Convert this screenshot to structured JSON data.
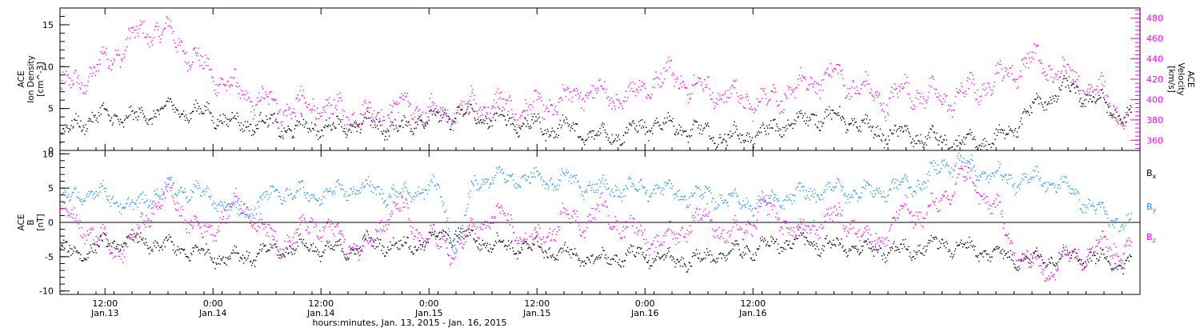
{
  "colors": {
    "density": "#000000",
    "velocity": "#ff00ff",
    "bx": "#000000",
    "by": "#1e90ff",
    "bz": "#ff00ff"
  },
  "chart_data": [
    {
      "type": "scatter",
      "panel": "top",
      "left_axis": {
        "lines": [
          "ACE",
          "Ion Density",
          "[cm^-3]"
        ],
        "ylim": [
          0,
          17
        ],
        "ticks": [
          "0",
          "5",
          "10",
          "15"
        ],
        "tick_values": [
          0,
          5,
          10,
          15
        ]
      },
      "right_axis": {
        "lines": [
          "ACE",
          "Velocity",
          "[km/s]"
        ],
        "ylim": [
          350,
          490
        ],
        "ticks": [
          "360",
          "380",
          "400",
          "420",
          "440",
          "460",
          "480"
        ],
        "tick_values": [
          360,
          380,
          400,
          420,
          440,
          460,
          480
        ]
      },
      "series": [
        {
          "axis": "left",
          "color_key": "density",
          "x_hours": [
            0,
            2,
            4,
            6,
            8,
            10,
            12,
            14,
            16,
            18,
            20,
            22,
            24,
            26,
            28,
            30,
            32,
            34,
            36,
            38,
            40,
            42,
            44,
            46,
            48,
            50,
            52,
            54,
            56,
            58,
            60,
            62,
            64,
            66,
            68,
            70,
            72,
            74,
            76,
            78,
            80,
            82,
            84,
            86,
            88,
            90,
            92,
            94,
            96,
            98,
            100,
            102,
            104,
            106,
            108,
            110,
            112,
            114,
            116,
            118
          ],
          "y": [
            1.5,
            3.5,
            4.0,
            4.2,
            3.8,
            4.5,
            5.0,
            4.8,
            4.5,
            4.0,
            3.0,
            3.5,
            3.0,
            2.5,
            3.0,
            2.8,
            3.0,
            3.2,
            3.0,
            2.5,
            4.0,
            3.8,
            4.5,
            4.0,
            3.8,
            3.5,
            3.2,
            2.5,
            3.0,
            2.0,
            1.8,
            2.0,
            2.5,
            3.2,
            3.0,
            2.5,
            2.0,
            1.5,
            1.8,
            2.0,
            3.0,
            3.5,
            4.2,
            4.0,
            3.5,
            2.5,
            2.0,
            2.0,
            1.5,
            1.2,
            0.8,
            1.0,
            1.2,
            3.0,
            5.0,
            6.5,
            7.5,
            6.5,
            5.5,
            4.0
          ],
          "spread": 1.2
        },
        {
          "axis": "right",
          "color_key": "velocity",
          "x_hours": [
            0,
            2,
            4,
            6,
            8,
            10,
            12,
            14,
            16,
            18,
            20,
            22,
            24,
            26,
            28,
            30,
            32,
            34,
            36,
            38,
            40,
            42,
            44,
            46,
            48,
            50,
            52,
            54,
            56,
            58,
            60,
            62,
            64,
            66,
            68,
            70,
            72,
            74,
            76,
            78,
            80,
            82,
            84,
            86,
            88,
            90,
            92,
            94,
            96,
            98,
            100,
            102,
            104,
            106,
            108,
            110,
            112,
            114,
            116,
            118
          ],
          "y": [
            410,
            418,
            430,
            445,
            460,
            470,
            465,
            450,
            430,
            420,
            405,
            400,
            395,
            392,
            395,
            390,
            388,
            385,
            388,
            395,
            390,
            385,
            390,
            395,
            395,
            392,
            390,
            395,
            398,
            410,
            405,
            400,
            408,
            420,
            425,
            415,
            410,
            405,
            400,
            398,
            405,
            410,
            420,
            425,
            415,
            405,
            400,
            410,
            405,
            400,
            405,
            412,
            420,
            430,
            440,
            430,
            425,
            415,
            405,
            380
          ],
          "spread": 14
        }
      ]
    },
    {
      "type": "scatter",
      "panel": "bottom",
      "left_axis": {
        "lines": [
          "ACE",
          "B",
          "[nT]"
        ],
        "ylim": [
          -10.5,
          10.5
        ],
        "ticks": [
          "-10",
          "-5",
          "0",
          "5",
          "10"
        ],
        "tick_values": [
          -10,
          -5,
          0,
          5,
          10
        ]
      },
      "legend": {
        "placement": "right",
        "entries": [
          {
            "name": "Bx",
            "sub": "x",
            "color_key": "bx"
          },
          {
            "name": "By",
            "sub": "y",
            "color_key": "by"
          },
          {
            "name": "Bz",
            "sub": "z",
            "color_key": "bz"
          }
        ]
      },
      "series": [
        {
          "name": "Bx",
          "color_key": "bx",
          "x_hours": [
            0,
            2,
            4,
            6,
            8,
            10,
            12,
            14,
            16,
            18,
            20,
            22,
            24,
            26,
            28,
            30,
            32,
            34,
            36,
            38,
            40,
            42,
            44,
            46,
            48,
            50,
            52,
            54,
            56,
            58,
            60,
            62,
            64,
            66,
            68,
            70,
            72,
            74,
            76,
            78,
            80,
            82,
            84,
            86,
            88,
            90,
            92,
            94,
            96,
            98,
            100,
            102,
            104,
            106,
            108,
            110,
            112,
            114,
            116,
            118
          ],
          "y": [
            -4,
            -4.5,
            -3.5,
            -3,
            -2.5,
            -3,
            -3.5,
            -4,
            -4.5,
            -5,
            -5,
            -4.5,
            -4,
            -3.5,
            -3.5,
            -4,
            -4,
            -3,
            -3,
            -3.5,
            -3,
            -2,
            -1.5,
            -2.5,
            -3,
            -3.5,
            -3.5,
            -4,
            -4.5,
            -5,
            -5.5,
            -5,
            -4.5,
            -5,
            -5.5,
            -5.5,
            -5,
            -4.5,
            -4,
            -3.5,
            -3,
            -2.5,
            -3,
            -3.5,
            -3.5,
            -4,
            -4,
            -4,
            -3.5,
            -3,
            -3.5,
            -4,
            -4.5,
            -5,
            -5.5,
            -5,
            -5,
            -5,
            -5.5,
            -6
          ],
          "spread": 1.3
        },
        {
          "name": "By",
          "color_key": "by",
          "x_hours": [
            0,
            2,
            4,
            6,
            8,
            10,
            12,
            14,
            16,
            18,
            20,
            22,
            24,
            26,
            28,
            30,
            32,
            34,
            36,
            38,
            40,
            42,
            44,
            46,
            48,
            50,
            52,
            54,
            56,
            58,
            60,
            62,
            64,
            66,
            68,
            70,
            72,
            74,
            76,
            78,
            80,
            82,
            84,
            86,
            88,
            90,
            92,
            94,
            96,
            98,
            100,
            102,
            104,
            106,
            108,
            110,
            112,
            114,
            116,
            118
          ],
          "y": [
            3,
            4,
            4.5,
            3.5,
            2,
            4,
            5,
            5,
            4,
            3,
            1,
            3,
            4.5,
            4.5,
            4,
            4.5,
            5,
            5,
            4.5,
            4,
            5,
            5,
            -4,
            6,
            6.5,
            6.5,
            6.5,
            6,
            6.5,
            5.5,
            5,
            5,
            5,
            5,
            4.5,
            4,
            4,
            3.5,
            3,
            3,
            3.5,
            4,
            4.5,
            5,
            4.5,
            4.5,
            5,
            5.5,
            6,
            8.5,
            9,
            7.5,
            7,
            6,
            6.5,
            6,
            5,
            3,
            1,
            0
          ],
          "spread": 1.4
        },
        {
          "name": "Bz",
          "color_key": "bz",
          "x_hours": [
            0,
            2,
            4,
            6,
            8,
            10,
            12,
            14,
            16,
            18,
            20,
            22,
            24,
            26,
            28,
            30,
            32,
            34,
            36,
            38,
            40,
            42,
            44,
            46,
            48,
            50,
            52,
            54,
            56,
            58,
            60,
            62,
            64,
            66,
            68,
            70,
            72,
            74,
            76,
            78,
            80,
            82,
            84,
            86,
            88,
            90,
            92,
            94,
            96,
            98,
            100,
            102,
            104,
            106,
            108,
            110,
            112,
            114,
            116,
            118
          ],
          "y": [
            2,
            0,
            -2,
            -4,
            -3,
            2,
            4,
            1,
            -2,
            1,
            3,
            0,
            -3,
            -2,
            0,
            -1,
            -3,
            -4,
            1,
            2,
            -2,
            -3,
            -4,
            -1,
            1,
            0,
            -3,
            -2,
            1,
            0,
            2,
            0,
            -1,
            -3,
            -2,
            0,
            1,
            -2,
            -1,
            2,
            1,
            -2,
            0,
            1,
            0,
            -3,
            -1,
            2,
            1,
            3,
            7,
            5,
            2,
            -4,
            -6,
            -7,
            -5,
            -4,
            -3,
            -4
          ],
          "spread": 1.8
        }
      ]
    }
  ],
  "x_axis": {
    "title": "hours:minutes, Jan. 13, 2015 - Jan. 16, 2015",
    "range_hours": [
      0,
      120
    ],
    "data_end_hours": 119,
    "ticks": [
      {
        "hours": 5,
        "time": "12:00",
        "date": "Jan.13"
      },
      {
        "hours": 17,
        "time": "0:00",
        "date": "Jan.14"
      },
      {
        "hours": 29,
        "time": "12:00",
        "date": "Jan.14"
      },
      {
        "hours": 41,
        "time": "0:00",
        "date": "Jan.15"
      },
      {
        "hours": 53,
        "time": "12:00",
        "date": "Jan.15"
      },
      {
        "hours": 65,
        "time": "0:00",
        "date": "Jan.16"
      },
      {
        "hours": 77,
        "time": "12:00",
        "date": "Jan.16"
      }
    ]
  }
}
